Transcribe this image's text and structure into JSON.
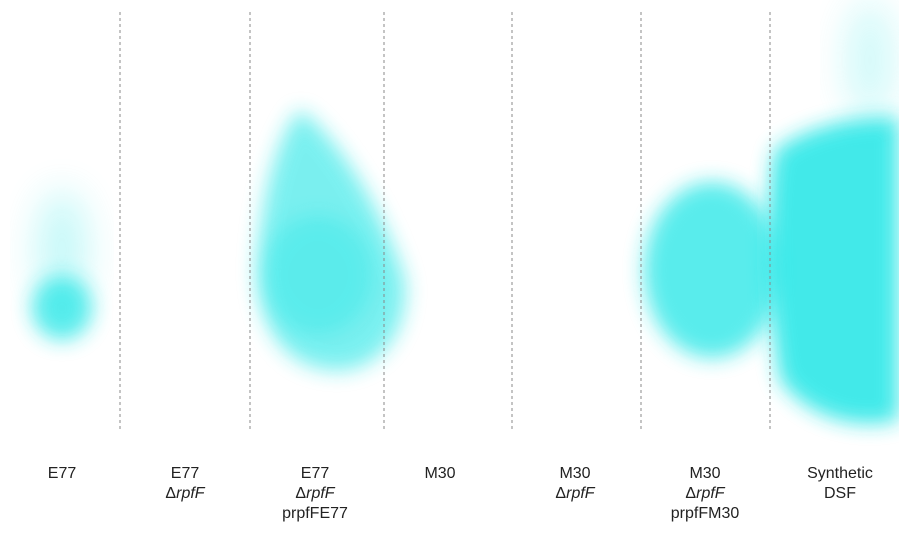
{
  "lanes": [
    {
      "lines": [
        "E77"
      ]
    },
    {
      "lines": [
        "E77",
        {
          "symbol": "Δ",
          "gene": "rpfF"
        }
      ]
    },
    {
      "lines": [
        "E77",
        {
          "symbol": "Δ",
          "gene": "rpfF"
        },
        "prpfFE77"
      ]
    },
    {
      "lines": [
        "M30"
      ]
    },
    {
      "lines": [
        "M30",
        {
          "symbol": "Δ",
          "gene": "rpfF"
        }
      ]
    },
    {
      "lines": [
        "M30",
        {
          "symbol": "Δ",
          "gene": "rpfF"
        },
        "prpfFM30"
      ]
    },
    {
      "lines": [
        "Synthetic",
        "DSF"
      ]
    }
  ]
}
